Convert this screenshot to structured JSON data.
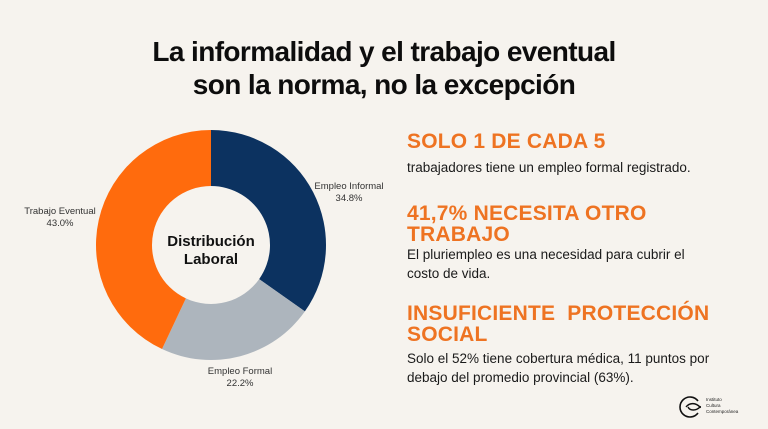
{
  "title": {
    "line1": "La informalidad y el trabajo eventual",
    "line2": "son la norma, no la excepción"
  },
  "chart_data": {
    "type": "pie",
    "variant": "donut",
    "title": "Distribución Laboral",
    "center_label": [
      "Distribución",
      "Laboral"
    ],
    "slices": [
      {
        "name": "Empleo Informal",
        "value": 34.8,
        "label": "34.8%",
        "color": "#0c3260"
      },
      {
        "name": "Empleo Formal",
        "value": 22.2,
        "label": "22.2%",
        "color": "#adb5bd"
      },
      {
        "name": "Trabajo Eventual",
        "value": 43.0,
        "label": "43.0%",
        "color": "#ff6b0d"
      }
    ],
    "start": "top",
    "direction": "clockwise"
  },
  "stats": [
    {
      "heading": "SOLO 1 DE CADA 5",
      "text": "trabajadores tiene un empleo formal registrado."
    },
    {
      "heading": "41,7% NECESITA OTRO TRABAJO",
      "text": "El pluriempleo es una necesidad para cubrir el costo de vida."
    },
    {
      "heading": "INSUFICIENTE  PROTECCIÓN SOCIAL",
      "text": "Solo el 52% tiene cobertura médica, 11 puntos por debajo del promedio provincial (63%)."
    }
  ],
  "logo": {
    "icon": "icc-logo-icon",
    "lines": [
      "Instituto",
      "Cultura",
      "Contemporánea"
    ]
  },
  "colors": {
    "accent": "#ee7322",
    "background": "#f6f3ee"
  }
}
